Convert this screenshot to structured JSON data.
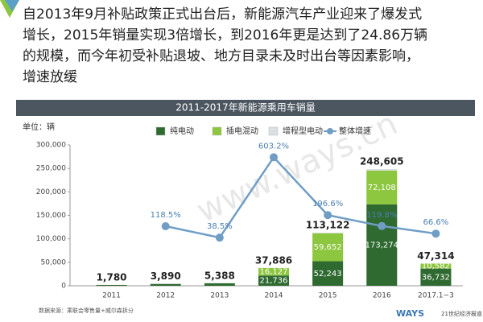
{
  "header": {
    "lines": [
      "自2013年9月补贴政策正式出台后，新能源汽车产业迎来了爆发式",
      "增长，2015年销量实现3倍增长，到2016年更是达到了24.86万辆",
      "的规模，而今年初受补贴退坡、地方目录未及时出台等因素影响，",
      "增速放缓"
    ]
  },
  "watermark": "www.ways.cn",
  "footer": {
    "source": "数据来源：乘联会零售量+威尔森拆分",
    "logo": "WAYS",
    "brand": "21世纪经济报道"
  },
  "chart_data": {
    "type": "bar",
    "stacked": true,
    "title": "2011-2017年新能源乘用车销量",
    "unit_label": "单位：辆",
    "categories": [
      "2011",
      "2012",
      "2013",
      "2014",
      "2015",
      "2016",
      "2017.1~3"
    ],
    "ylim": [
      0,
      300000
    ],
    "yticks": [
      {
        "value": 0,
        "label": "0"
      },
      {
        "value": 50000,
        "label": "50,000"
      },
      {
        "value": 100000,
        "label": "100,000"
      },
      {
        "value": 150000,
        "label": "150,000"
      },
      {
        "value": 200000,
        "label": "200,000"
      },
      {
        "value": 250000,
        "label": "250,000"
      },
      {
        "value": 300000,
        "label": "300,000"
      }
    ],
    "y2lim": [
      -300,
      690
    ],
    "grid": false,
    "legend": "top",
    "series": [
      {
        "name": "纯电动",
        "color": "#2f6a30",
        "values": [
          1780,
          3890,
          5388,
          21736,
          52243,
          173274,
          36732
        ],
        "value_labels": [
          null,
          null,
          null,
          "21,736",
          "52,243",
          "173,274",
          "36,732"
        ]
      },
      {
        "name": "插电混动",
        "color": "#8dc63f",
        "values": [
          null,
          null,
          null,
          16127,
          59652,
          72108,
          10582
        ],
        "value_labels": [
          null,
          null,
          null,
          "16,127",
          "59,652",
          "72,108",
          "10,582"
        ]
      },
      {
        "name": "增程型电动",
        "color": "#d9dfe3",
        "values": [
          null,
          null,
          null,
          23,
          1227,
          3223,
          null
        ]
      },
      {
        "name": "整体增速",
        "type": "line",
        "axis": "y2",
        "color": "#6f9dc6",
        "values": [
          null,
          118.5,
          38.5,
          603.2,
          196.6,
          119.8,
          66.6
        ],
        "value_labels": [
          null,
          "118.5%",
          "38.5%",
          "603.2%",
          "196.6%",
          "119.8%",
          "66.6%"
        ]
      }
    ],
    "totals": [
      1780,
      3890,
      5388,
      37886,
      113122,
      248605,
      47314
    ],
    "totals_labels": [
      "1,780",
      "3,890",
      "5,388",
      "37,886",
      "113,122",
      "248,605",
      "47,314"
    ]
  }
}
